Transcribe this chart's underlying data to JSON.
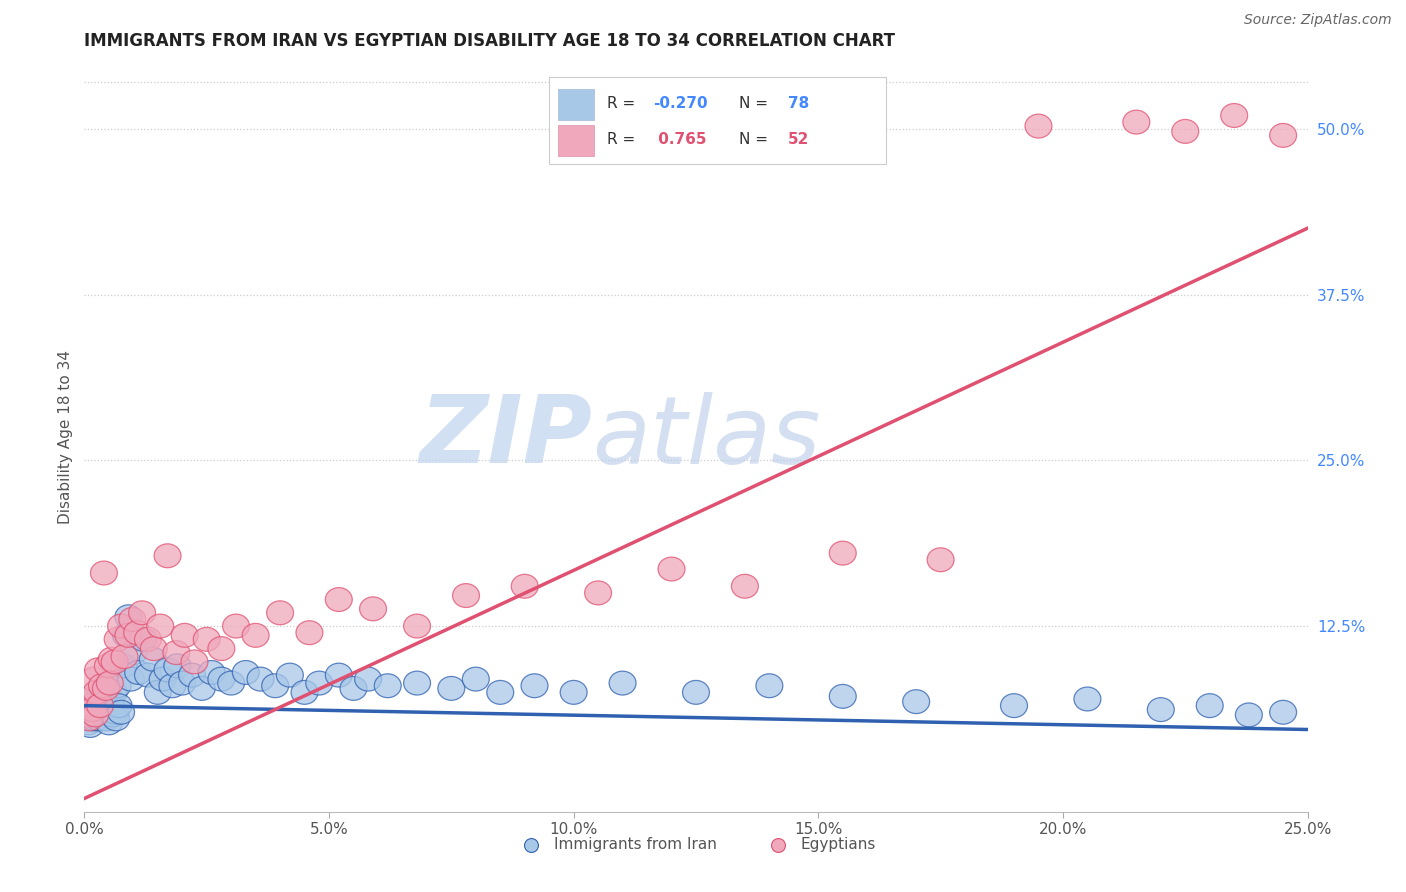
{
  "title": "IMMIGRANTS FROM IRAN VS EGYPTIAN DISABILITY AGE 18 TO 34 CORRELATION CHART",
  "source": "Source: ZipAtlas.com",
  "ylabel": "Disability Age 18 to 34",
  "x_tick_labels": [
    "0.0%",
    "5.0%",
    "10.0%",
    "15.0%",
    "20.0%",
    "25.0%"
  ],
  "x_tick_values": [
    0.0,
    5.0,
    10.0,
    15.0,
    20.0,
    25.0
  ],
  "y_tick_labels_right": [
    "12.5%",
    "25.0%",
    "37.5%",
    "50.0%"
  ],
  "y_tick_values_right": [
    12.5,
    25.0,
    37.5,
    50.0
  ],
  "xlim": [
    0.0,
    25.0
  ],
  "ylim": [
    -1.5,
    55.0
  ],
  "legend_label1": "Immigrants from Iran",
  "legend_label2": "Egyptians",
  "r1": "-0.270",
  "n1": "78",
  "r2": "0.765",
  "n2": "52",
  "color_iran": "#A8C8E8",
  "color_egypt": "#F0A8BC",
  "color_iran_line": "#3060B0",
  "color_egypt_line": "#E05070",
  "watermark_zip": "ZIP",
  "watermark_atlas": "atlas",
  "watermark_color_zip": "#C0D4EE",
  "watermark_color_atlas": "#B8CCE8",
  "iran_x": [
    0.04,
    0.06,
    0.08,
    0.1,
    0.12,
    0.14,
    0.16,
    0.18,
    0.2,
    0.22,
    0.24,
    0.26,
    0.28,
    0.3,
    0.32,
    0.35,
    0.38,
    0.4,
    0.42,
    0.45,
    0.48,
    0.5,
    0.52,
    0.55,
    0.58,
    0.6,
    0.63,
    0.65,
    0.68,
    0.7,
    0.75,
    0.8,
    0.85,
    0.9,
    0.95,
    1.0,
    1.1,
    1.2,
    1.3,
    1.4,
    1.5,
    1.6,
    1.7,
    1.8,
    1.9,
    2.0,
    2.2,
    2.4,
    2.6,
    2.8,
    3.0,
    3.3,
    3.6,
    3.9,
    4.2,
    4.5,
    4.8,
    5.2,
    5.5,
    5.8,
    6.2,
    6.8,
    7.5,
    8.0,
    8.5,
    9.2,
    10.0,
    11.0,
    12.5,
    14.0,
    15.5,
    17.0,
    19.0,
    20.5,
    22.0,
    23.0,
    23.8,
    24.5
  ],
  "iran_y": [
    5.5,
    6.0,
    5.2,
    6.8,
    5.0,
    6.5,
    5.8,
    6.2,
    5.5,
    6.0,
    6.5,
    5.8,
    7.0,
    5.5,
    6.2,
    6.5,
    5.8,
    7.2,
    6.0,
    5.5,
    6.8,
    5.2,
    7.0,
    6.5,
    5.8,
    7.5,
    6.0,
    5.5,
    8.0,
    6.5,
    6.0,
    9.5,
    11.8,
    13.2,
    8.5,
    10.5,
    9.0,
    11.5,
    8.8,
    10.0,
    7.5,
    8.5,
    9.2,
    8.0,
    9.5,
    8.2,
    8.8,
    7.8,
    9.0,
    8.5,
    8.2,
    9.0,
    8.5,
    8.0,
    8.8,
    7.5,
    8.2,
    8.8,
    7.8,
    8.5,
    8.0,
    8.2,
    7.8,
    8.5,
    7.5,
    8.0,
    7.5,
    8.2,
    7.5,
    8.0,
    7.2,
    6.8,
    6.5,
    7.0,
    6.2,
    6.5,
    5.8,
    6.0
  ],
  "egypt_x": [
    0.05,
    0.08,
    0.1,
    0.13,
    0.16,
    0.19,
    0.22,
    0.25,
    0.28,
    0.32,
    0.36,
    0.4,
    0.44,
    0.48,
    0.52,
    0.56,
    0.62,
    0.68,
    0.75,
    0.82,
    0.9,
    0.98,
    1.08,
    1.18,
    1.3,
    1.42,
    1.55,
    1.7,
    1.88,
    2.05,
    2.25,
    2.5,
    2.8,
    3.1,
    3.5,
    4.0,
    4.6,
    5.2,
    5.9,
    6.8,
    7.8,
    9.0,
    10.5,
    12.0,
    13.5,
    15.5,
    17.5,
    19.5,
    21.5,
    22.5,
    23.5,
    24.5
  ],
  "egypt_y": [
    5.8,
    6.5,
    5.5,
    7.0,
    6.2,
    8.5,
    5.8,
    7.5,
    9.2,
    6.5,
    8.0,
    16.5,
    7.8,
    9.5,
    8.2,
    10.0,
    9.8,
    11.5,
    12.5,
    10.2,
    11.8,
    13.0,
    12.0,
    13.5,
    11.5,
    10.8,
    12.5,
    17.8,
    10.5,
    11.8,
    9.8,
    11.5,
    10.8,
    12.5,
    11.8,
    13.5,
    12.0,
    14.5,
    13.8,
    12.5,
    14.8,
    15.5,
    15.0,
    16.8,
    15.5,
    18.0,
    17.5,
    50.2,
    50.5,
    49.8,
    51.0,
    49.5
  ]
}
